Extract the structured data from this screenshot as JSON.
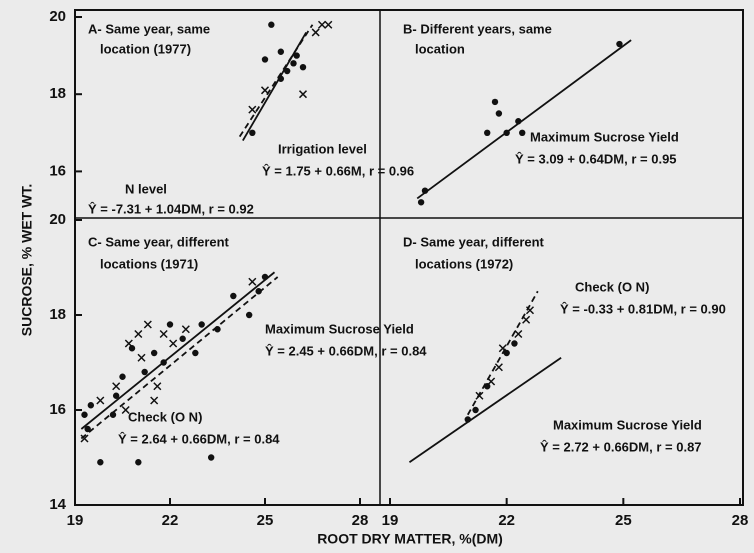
{
  "figure": {
    "ylabel": "SUCROSE, % WET WT.",
    "xlabel": "ROOT DRY MATTER, %(DM)"
  },
  "chart_data": [
    {
      "type": "scatter",
      "title": [
        "A- Same year, same",
        "location (1977)"
      ],
      "xlim": [
        19,
        28
      ],
      "ylim": [
        15,
        20
      ],
      "yticks": [
        16,
        18,
        20
      ],
      "annotations": [
        "Irrigation level",
        "Ŷ = 1.75 + 0.66M, r = 0.96",
        "N level",
        "Ŷ = -7.31 + 1.04DM, r = 0.92"
      ],
      "points": [
        {
          "marker": "dot",
          "x": [
            24.6,
            25.0,
            25.2,
            25.5,
            25.7,
            25.9,
            26.0,
            26.2,
            25.5
          ],
          "y": [
            17.0,
            18.9,
            19.8,
            19.1,
            18.6,
            18.8,
            19.0,
            18.7,
            18.4
          ]
        },
        {
          "marker": "x",
          "x": [
            24.6,
            25.0,
            26.2,
            26.6,
            26.8,
            27.0
          ],
          "y": [
            17.6,
            18.1,
            18.0,
            19.6,
            19.8,
            19.8
          ]
        }
      ],
      "lines": [
        {
          "dash": false,
          "x": [
            24.3,
            26.3
          ],
          "y": [
            16.8,
            19.6
          ]
        },
        {
          "dash": true,
          "x": [
            24.2,
            26.5
          ],
          "y": [
            16.9,
            19.8
          ]
        }
      ]
    },
    {
      "type": "scatter",
      "title": [
        "B- Different years, same",
        "location"
      ],
      "xlim": [
        19,
        28
      ],
      "ylim": [
        15,
        20
      ],
      "annotations": [
        "Maximum Sucrose Yield",
        "Ŷ = 3.09 + 0.64DM, r = 0.95"
      ],
      "points": [
        {
          "marker": "dot",
          "x": [
            19.8,
            19.9,
            21.5,
            21.7,
            21.8,
            22.0,
            22.3,
            22.4,
            24.9
          ],
          "y": [
            15.2,
            15.5,
            17.0,
            17.8,
            17.5,
            17.0,
            17.3,
            17.0,
            19.3
          ]
        }
      ],
      "lines": [
        {
          "dash": false,
          "x": [
            19.7,
            25.2
          ],
          "y": [
            15.3,
            19.4
          ]
        }
      ]
    },
    {
      "type": "scatter",
      "title": [
        "C- Same year, different",
        "locations (1971)"
      ],
      "xlim": [
        19,
        28
      ],
      "ylim": [
        14,
        20
      ],
      "xticks": [
        19,
        22,
        25,
        28
      ],
      "yticks": [
        14,
        16,
        18,
        20
      ],
      "annotations": [
        "Maximum Sucrose Yield",
        "Ŷ = 2.45 + 0.66DM, r = 0.84",
        "Check (O N)",
        "Ŷ = 2.64 + 0.66DM, r = 0.84"
      ],
      "points": [
        {
          "marker": "dot",
          "x": [
            19.3,
            19.4,
            19.5,
            19.8,
            20.2,
            20.3,
            20.5,
            20.8,
            21.0,
            21.2,
            21.5,
            21.8,
            22.0,
            22.4,
            22.8,
            23.0,
            23.5,
            24.0,
            24.5,
            24.8,
            23.3,
            25.0
          ],
          "y": [
            15.9,
            15.6,
            16.1,
            14.9,
            15.9,
            16.3,
            16.7,
            17.3,
            14.9,
            16.8,
            17.2,
            17.0,
            17.8,
            17.5,
            17.2,
            17.8,
            17.7,
            18.4,
            18.0,
            18.5,
            15.0,
            18.8
          ]
        },
        {
          "marker": "x",
          "x": [
            19.3,
            19.8,
            20.3,
            20.6,
            20.7,
            21.0,
            21.1,
            21.3,
            21.5,
            21.6,
            21.8,
            22.1,
            22.5,
            24.6
          ],
          "y": [
            15.4,
            16.2,
            16.5,
            16.0,
            17.4,
            17.6,
            17.1,
            17.8,
            16.2,
            16.5,
            17.6,
            17.4,
            17.7,
            18.7
          ]
        }
      ],
      "lines": [
        {
          "dash": false,
          "x": [
            19.2,
            25.3
          ],
          "y": [
            15.6,
            18.9
          ]
        },
        {
          "dash": true,
          "x": [
            19.2,
            25.4
          ],
          "y": [
            15.4,
            18.8
          ]
        }
      ]
    },
    {
      "type": "scatter",
      "title": [
        "D- Same year, different",
        "locations (1972)"
      ],
      "xlim": [
        19,
        28
      ],
      "ylim": [
        14,
        20
      ],
      "xticks": [
        19,
        22,
        25,
        28
      ],
      "annotations": [
        "Check (O N)",
        "Ŷ = -0.33 + 0.81DM, r = 0.90",
        "Maximum Sucrose Yield",
        "Ŷ = 2.72 + 0.66DM, r = 0.87"
      ],
      "points": [
        {
          "marker": "dot",
          "x": [
            21.0,
            21.2,
            21.5,
            22.0,
            22.2
          ],
          "y": [
            15.8,
            16.0,
            16.5,
            17.2,
            17.4
          ]
        },
        {
          "marker": "x",
          "x": [
            21.3,
            21.6,
            21.9,
            22.3,
            22.5,
            22.6,
            21.8
          ],
          "y": [
            16.3,
            16.6,
            17.3,
            17.6,
            17.9,
            18.1,
            16.9
          ]
        }
      ],
      "lines": [
        {
          "dash": false,
          "x": [
            19.5,
            23.4
          ],
          "y": [
            14.9,
            17.1
          ]
        },
        {
          "dash": true,
          "x": [
            21.0,
            22.8
          ],
          "y": [
            15.9,
            18.5
          ]
        }
      ]
    }
  ]
}
